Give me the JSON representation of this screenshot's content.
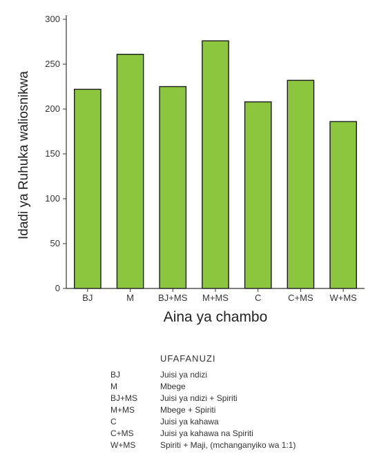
{
  "chart_data": {
    "type": "bar",
    "categories": [
      "BJ",
      "M",
      "BJ+MS",
      "M+MS",
      "C",
      "C+MS",
      "W+MS"
    ],
    "values": [
      222,
      261,
      225,
      276,
      208,
      232,
      186
    ],
    "xlabel": "Aina ya chambo",
    "ylabel": "Idadi ya Ruhuka waliosnikwa",
    "ylim": [
      0,
      300
    ],
    "yticks": [
      0,
      50,
      100,
      150,
      200,
      250,
      300
    ],
    "bar_color": "#8cc63f",
    "bar_edge_color": "#1a1a1a",
    "grid": false,
    "legend": {
      "title": "UFAFANUZI",
      "entries": [
        {
          "abbr": "BJ",
          "desc": "Juisi ya ndizi"
        },
        {
          "abbr": "M",
          "desc": "Mbege"
        },
        {
          "abbr": "BJ+MS",
          "desc": "Juisi ya ndizi + Spiriti"
        },
        {
          "abbr": "M+MS",
          "desc": "Mbege + Spiriti"
        },
        {
          "abbr": "C",
          "desc": "Juisi ya kahawa"
        },
        {
          "abbr": "C+MS",
          "desc": "Juisi ya kahawa na Spiriti"
        },
        {
          "abbr": "W+MS",
          "desc": "Spiriti + Maji, (mchanganyiko wa 1:1)"
        }
      ]
    }
  }
}
